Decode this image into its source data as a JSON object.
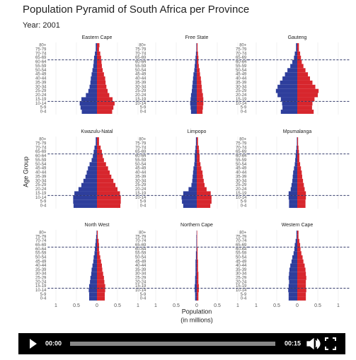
{
  "title": "Population Pyramid of South Africa per Province",
  "subtitle": "Year: 2001",
  "video": {
    "current": "00:00",
    "duration": "00:15"
  },
  "chart_data": {
    "type": "pyramid",
    "ylabel": "Age Group",
    "xlabel": [
      "Population",
      "(in millions)"
    ],
    "categories": [
      "0-4",
      "5-9",
      "10-14",
      "15-19",
      "20-24",
      "25-29",
      "30-34",
      "35-39",
      "40-44",
      "45-49",
      "50-54",
      "55-59",
      "60-64",
      "65-69",
      "70-74",
      "75-79",
      "80+"
    ],
    "xlim": [
      -1.2,
      1.2
    ],
    "xticks": [
      {
        "value": -1,
        "label": "1"
      },
      {
        "value": -0.5,
        "label": "0.5"
      },
      0,
      0.5,
      1
    ],
    "grid": true,
    "panels": [
      {
        "title": "Eastern Cape",
        "series": [
          {
            "side": "left",
            "color": "#2e3e9c",
            "values": [
              0.37,
              0.4,
              0.42,
              0.38,
              0.27,
              0.21,
              0.18,
              0.16,
              0.15,
              0.13,
              0.11,
              0.09,
              0.08,
              0.07,
              0.05,
              0.03,
              0.03
            ]
          },
          {
            "side": "right",
            "color": "#d7262d",
            "values": [
              0.37,
              0.4,
              0.43,
              0.38,
              0.3,
              0.26,
              0.23,
              0.21,
              0.2,
              0.17,
              0.14,
              0.12,
              0.11,
              0.1,
              0.08,
              0.05,
              0.06
            ]
          }
        ]
      },
      {
        "title": "Free State",
        "series": [
          {
            "side": "left",
            "color": "#2e3e9c",
            "values": [
              0.14,
              0.15,
              0.16,
              0.15,
              0.14,
              0.12,
              0.11,
              0.1,
              0.09,
              0.08,
              0.06,
              0.05,
              0.04,
              0.03,
              0.02,
              0.01,
              0.01
            ]
          },
          {
            "side": "right",
            "color": "#d7262d",
            "values": [
              0.14,
              0.15,
              0.16,
              0.16,
              0.15,
              0.13,
              0.12,
              0.11,
              0.1,
              0.08,
              0.07,
              0.05,
              0.04,
              0.04,
              0.03,
              0.02,
              0.02
            ]
          }
        ]
      },
      {
        "title": "Gauteng",
        "series": [
          {
            "side": "left",
            "color": "#2e3e9c",
            "values": [
              0.4,
              0.36,
              0.37,
              0.4,
              0.48,
              0.52,
              0.48,
              0.42,
              0.36,
              0.3,
              0.24,
              0.17,
              0.12,
              0.08,
              0.06,
              0.03,
              0.03
            ]
          },
          {
            "side": "right",
            "color": "#d7262d",
            "values": [
              0.4,
              0.36,
              0.37,
              0.42,
              0.5,
              0.52,
              0.44,
              0.37,
              0.31,
              0.26,
              0.2,
              0.15,
              0.11,
              0.09,
              0.07,
              0.04,
              0.04
            ]
          }
        ]
      },
      {
        "title": "Kwazulu-Natal",
        "series": [
          {
            "side": "left",
            "color": "#2e3e9c",
            "values": [
              0.57,
              0.58,
              0.58,
              0.55,
              0.45,
              0.38,
              0.33,
              0.28,
              0.25,
              0.22,
              0.18,
              0.13,
              0.1,
              0.08,
              0.06,
              0.03,
              0.03
            ]
          },
          {
            "side": "right",
            "color": "#d7262d",
            "values": [
              0.57,
              0.58,
              0.58,
              0.56,
              0.5,
              0.45,
              0.4,
              0.35,
              0.31,
              0.27,
              0.22,
              0.17,
              0.14,
              0.12,
              0.09,
              0.05,
              0.05
            ]
          }
        ]
      },
      {
        "title": "Limpopo",
        "series": [
          {
            "side": "left",
            "color": "#2e3e9c",
            "values": [
              0.33,
              0.36,
              0.37,
              0.33,
              0.2,
              0.13,
              0.11,
              0.1,
              0.09,
              0.08,
              0.06,
              0.05,
              0.05,
              0.04,
              0.03,
              0.02,
              0.02
            ]
          },
          {
            "side": "right",
            "color": "#d7262d",
            "values": [
              0.33,
              0.36,
              0.36,
              0.34,
              0.24,
              0.19,
              0.17,
              0.15,
              0.14,
              0.11,
              0.09,
              0.07,
              0.07,
              0.06,
              0.05,
              0.03,
              0.03
            ]
          }
        ]
      },
      {
        "title": "Mpumalanga",
        "series": [
          {
            "side": "left",
            "color": "#2e3e9c",
            "values": [
              0.2,
              0.2,
              0.21,
              0.21,
              0.16,
              0.14,
              0.12,
              0.11,
              0.1,
              0.08,
              0.06,
              0.05,
              0.04,
              0.03,
              0.02,
              0.01,
              0.01
            ]
          },
          {
            "side": "right",
            "color": "#d7262d",
            "values": [
              0.2,
              0.2,
              0.21,
              0.21,
              0.18,
              0.16,
              0.14,
              0.12,
              0.11,
              0.09,
              0.07,
              0.05,
              0.05,
              0.04,
              0.03,
              0.02,
              0.02
            ]
          }
        ]
      },
      {
        "title": "North West",
        "series": [
          {
            "side": "left",
            "color": "#2e3e9c",
            "values": [
              0.19,
              0.19,
              0.2,
              0.19,
              0.17,
              0.16,
              0.14,
              0.13,
              0.11,
              0.09,
              0.08,
              0.06,
              0.05,
              0.04,
              0.03,
              0.02,
              0.01
            ]
          },
          {
            "side": "right",
            "color": "#d7262d",
            "values": [
              0.19,
              0.19,
              0.2,
              0.2,
              0.18,
              0.17,
              0.15,
              0.13,
              0.12,
              0.1,
              0.08,
              0.06,
              0.05,
              0.05,
              0.04,
              0.02,
              0.02
            ]
          }
        ]
      },
      {
        "title": "Northern Cape",
        "series": [
          {
            "side": "left",
            "color": "#2e3e9c",
            "values": [
              0.04,
              0.04,
              0.05,
              0.05,
              0.04,
              0.04,
              0.03,
              0.03,
              0.03,
              0.03,
              0.02,
              0.02,
              0.01,
              0.01,
              0.01,
              0.01,
              0.005
            ]
          },
          {
            "side": "right",
            "color": "#d7262d",
            "values": [
              0.04,
              0.04,
              0.05,
              0.05,
              0.04,
              0.04,
              0.04,
              0.03,
              0.03,
              0.03,
              0.02,
              0.02,
              0.02,
              0.01,
              0.01,
              0.01,
              0.01
            ]
          }
        ]
      },
      {
        "title": "Western Cape",
        "series": [
          {
            "side": "left",
            "color": "#2e3e9c",
            "values": [
              0.21,
              0.21,
              0.22,
              0.21,
              0.2,
              0.21,
              0.2,
              0.19,
              0.17,
              0.14,
              0.12,
              0.09,
              0.07,
              0.06,
              0.04,
              0.02,
              0.02
            ]
          },
          {
            "side": "right",
            "color": "#d7262d",
            "values": [
              0.21,
              0.21,
              0.22,
              0.21,
              0.21,
              0.22,
              0.21,
              0.2,
              0.18,
              0.15,
              0.13,
              0.1,
              0.08,
              0.07,
              0.05,
              0.03,
              0.03
            ]
          }
        ]
      }
    ]
  }
}
